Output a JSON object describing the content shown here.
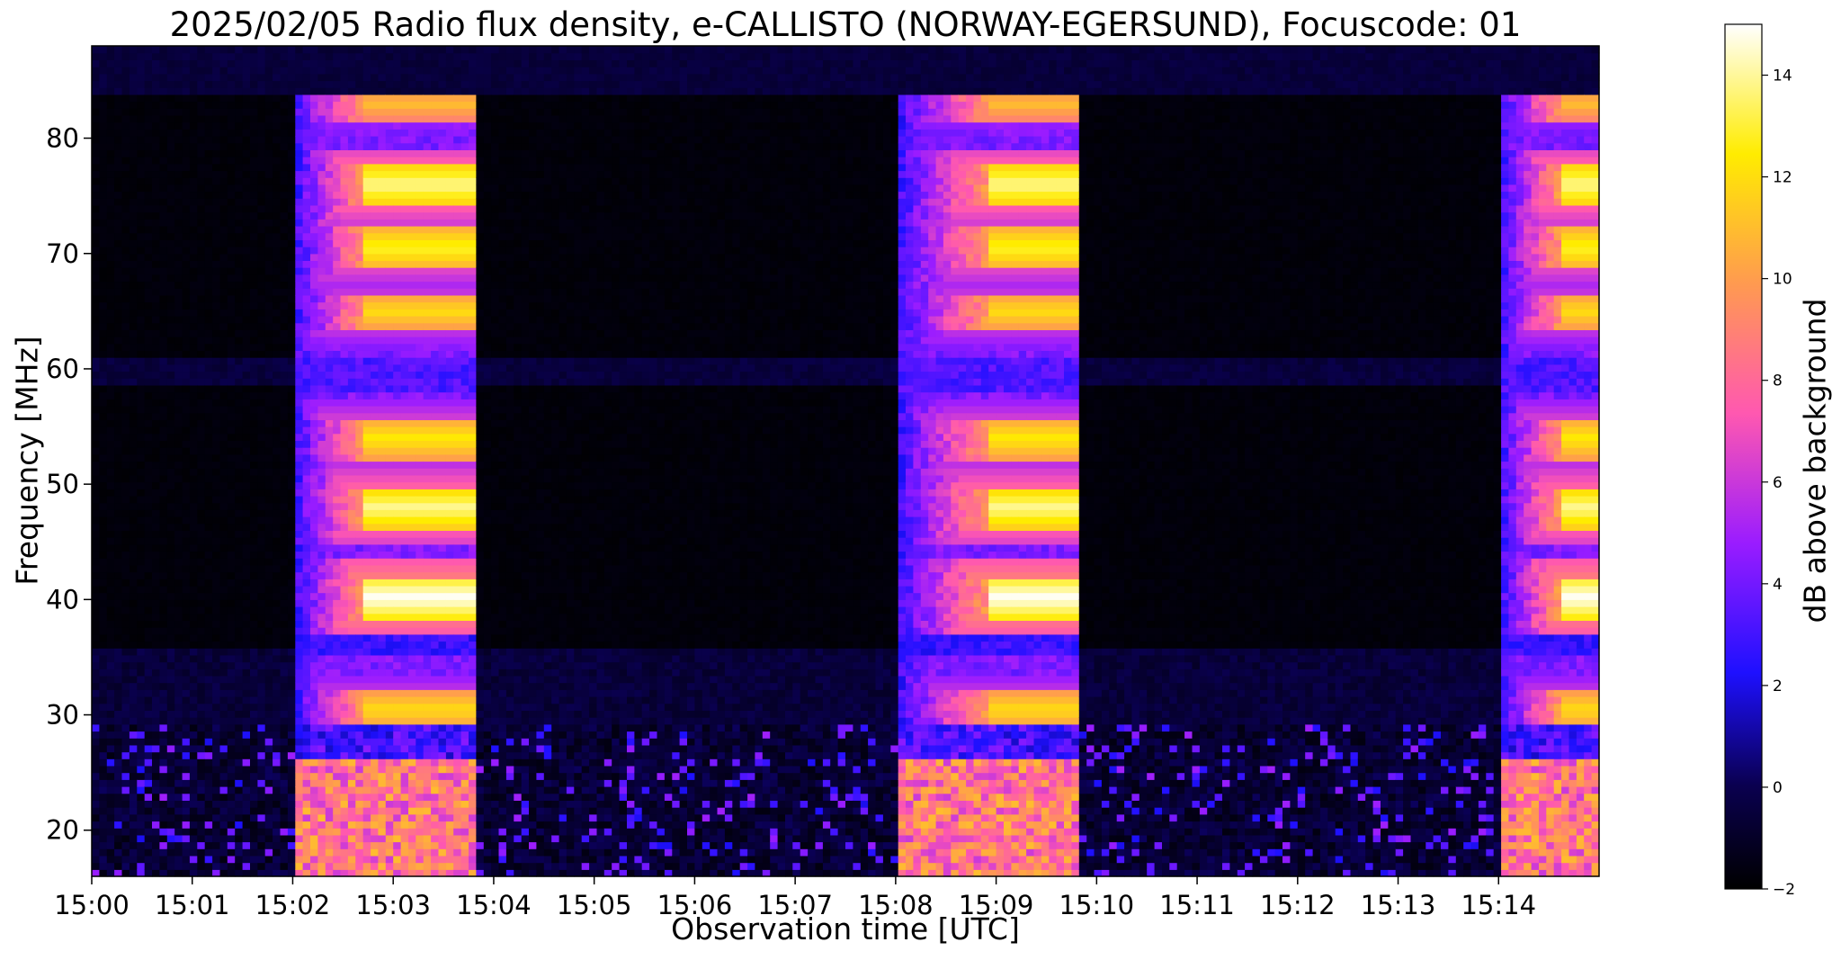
{
  "chart_data": {
    "type": "heatmap",
    "title": "2025/02/05  Radio flux density, e-CALLISTO (NORWAY-EGERSUND), Focuscode: 01",
    "xlabel": "Observation time [UTC]",
    "ylabel": "Frequency [MHz]",
    "colorbar_label": "dB above background",
    "colormap": "gnuplot2",
    "xlim": [
      0,
      15
    ],
    "x_tick_values": [
      0,
      1,
      2,
      3,
      4,
      5,
      6,
      7,
      8,
      9,
      10,
      11,
      12,
      13,
      14
    ],
    "x_tick_labels": [
      "15:00",
      "15:01",
      "15:02",
      "15:03",
      "15:04",
      "15:05",
      "15:06",
      "15:07",
      "15:08",
      "15:09",
      "15:10",
      "15:11",
      "15:12",
      "15:13",
      "15:14"
    ],
    "ylim": [
      16,
      88
    ],
    "y_ticks": [
      20,
      30,
      40,
      50,
      60,
      70,
      80
    ],
    "clim": [
      -2,
      15
    ],
    "colorbar_ticks": [
      -2,
      0,
      2,
      4,
      6,
      8,
      10,
      12,
      14
    ],
    "bursts": [
      {
        "start_min": 2.0,
        "mid_min": 2.7,
        "end_min": 3.85
      },
      {
        "start_min": 8.0,
        "mid_min": 8.9,
        "end_min": 9.85
      },
      {
        "start_min": 14.0,
        "mid_min": 14.6,
        "end_min": 15.0
      }
    ],
    "bright_bands_mhz": [
      {
        "center": 83,
        "dB": 11
      },
      {
        "center": 76,
        "dB": 14
      },
      {
        "center": 70.5,
        "dB": 13
      },
      {
        "center": 65,
        "dB": 12
      },
      {
        "center": 54,
        "dB": 12.5
      },
      {
        "center": 48,
        "dB": 14
      },
      {
        "center": 40.2,
        "dB": 15
      },
      {
        "center": 30.5,
        "dB": 12
      }
    ]
  }
}
